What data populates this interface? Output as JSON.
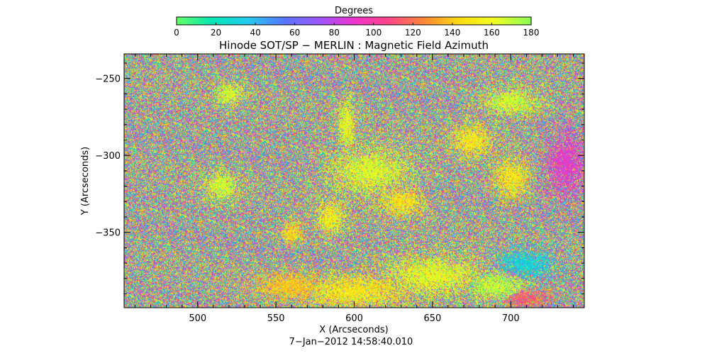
{
  "chart_data": {
    "type": "heatmap",
    "title": "Hinode SOT/SP − MERLIN : Magnetic Field Azimuth",
    "xlabel": "X (Arcseconds)",
    "ylabel": "Y (Arcseconds)",
    "timestamp": "7−Jan−2012  14:58:40.010",
    "xlim": [
      453,
      747
    ],
    "ylim": [
      -399,
      -234
    ],
    "xticks": [
      500,
      550,
      600,
      650,
      700
    ],
    "yticks": [
      -250,
      -300,
      -350
    ],
    "colorbar": {
      "label": "Degrees",
      "range": [
        0,
        180
      ],
      "ticks": [
        0,
        20,
        40,
        60,
        80,
        100,
        120,
        140,
        160,
        180
      ],
      "colors": [
        "#66ff66",
        "#00e6b3",
        "#22ccee",
        "#5577ff",
        "#9955ff",
        "#ee33cc",
        "#ff4488",
        "#ff8833",
        "#ffdd11",
        "#eeff22",
        "#88ff55"
      ]
    },
    "regions": [
      {
        "x": 595,
        "y": -280,
        "rx": 6,
        "ry": 18,
        "value": 160
      },
      {
        "x": 610,
        "y": -310,
        "rx": 28,
        "ry": 16,
        "value": 162
      },
      {
        "x": 630,
        "y": -330,
        "rx": 16,
        "ry": 10,
        "value": 150
      },
      {
        "x": 585,
        "y": -340,
        "rx": 10,
        "ry": 12,
        "value": 155
      },
      {
        "x": 675,
        "y": -290,
        "rx": 14,
        "ry": 12,
        "value": 150
      },
      {
        "x": 700,
        "y": -265,
        "rx": 20,
        "ry": 10,
        "value": 165
      },
      {
        "x": 735,
        "y": -305,
        "rx": 14,
        "ry": 22,
        "value": 90
      },
      {
        "x": 700,
        "y": -315,
        "rx": 12,
        "ry": 14,
        "value": 150
      },
      {
        "x": 600,
        "y": -388,
        "rx": 40,
        "ry": 12,
        "value": 150
      },
      {
        "x": 650,
        "y": -378,
        "rx": 35,
        "ry": 14,
        "value": 160
      },
      {
        "x": 560,
        "y": -385,
        "rx": 25,
        "ry": 10,
        "value": 140
      },
      {
        "x": 710,
        "y": -370,
        "rx": 18,
        "ry": 10,
        "value": 30
      },
      {
        "x": 690,
        "y": -385,
        "rx": 20,
        "ry": 10,
        "value": 170
      },
      {
        "x": 710,
        "y": -393,
        "rx": 15,
        "ry": 6,
        "value": 115
      },
      {
        "x": 515,
        "y": -320,
        "rx": 12,
        "ry": 10,
        "value": 165
      },
      {
        "x": 560,
        "y": -350,
        "rx": 8,
        "ry": 8,
        "value": 145
      },
      {
        "x": 520,
        "y": -260,
        "rx": 10,
        "ry": 8,
        "value": 165
      }
    ]
  }
}
